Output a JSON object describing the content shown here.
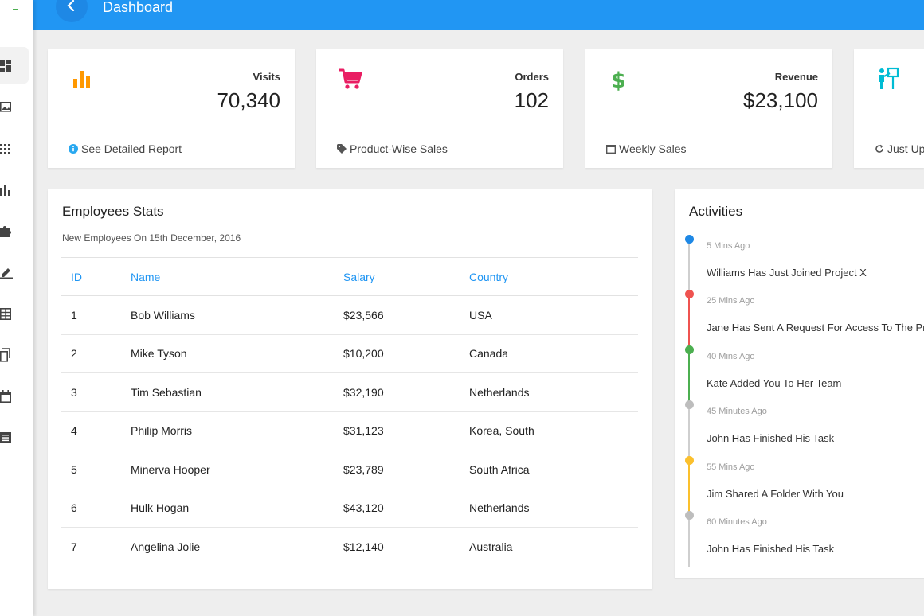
{
  "header": {
    "title": "Dashboard"
  },
  "sidebar": {
    "items": [
      {
        "icon": "dashboard-icon"
      },
      {
        "icon": "picture-icon"
      },
      {
        "icon": "apps-grid-icon"
      },
      {
        "icon": "bar-chart-icon"
      },
      {
        "icon": "puzzle-icon"
      },
      {
        "icon": "pencil-icon"
      },
      {
        "icon": "table-icon"
      },
      {
        "icon": "copy-icon"
      },
      {
        "icon": "calendar-icon"
      },
      {
        "icon": "list-icon"
      }
    ]
  },
  "stats": [
    {
      "label": "Visits",
      "value": "70,340",
      "footer": "See Detailed Report",
      "icon": "bar-chart-icon",
      "color": "#ff9800",
      "footer_icon": "info-icon"
    },
    {
      "label": "Orders",
      "value": "102",
      "footer": "Product-Wise Sales",
      "icon": "cart-icon",
      "color": "#e91e63",
      "footer_icon": "tag-icon"
    },
    {
      "label": "Revenue",
      "value": "$23,100",
      "footer": "Weekly Sales",
      "icon": "dollar-icon",
      "color": "#4caf50",
      "footer_icon": "calendar-icon"
    },
    {
      "label": "",
      "value": "",
      "footer": "Just Up",
      "icon": "person-board-icon",
      "color": "#00bcd4",
      "footer_icon": "refresh-icon"
    }
  ],
  "employees": {
    "title": "Employees Stats",
    "subtitle": "New Employees On 15th December, 2016",
    "columns": [
      "ID",
      "Name",
      "Salary",
      "Country"
    ],
    "rows": [
      [
        "1",
        "Bob Williams",
        "$23,566",
        "USA"
      ],
      [
        "2",
        "Mike Tyson",
        "$10,200",
        "Canada"
      ],
      [
        "3",
        "Tim Sebastian",
        "$32,190",
        "Netherlands"
      ],
      [
        "4",
        "Philip Morris",
        "$31,123",
        "Korea, South"
      ],
      [
        "5",
        "Minerva Hooper",
        "$23,789",
        "South Africa"
      ],
      [
        "6",
        "Hulk Hogan",
        "$43,120",
        "Netherlands"
      ],
      [
        "7",
        "Angelina Jolie",
        "$12,140",
        "Australia"
      ]
    ]
  },
  "activities": {
    "title": "Activities",
    "items": [
      {
        "time": "5 Mins Ago",
        "text": "Williams Has Just Joined Project X",
        "color": "#1e88e5"
      },
      {
        "time": "25 Mins Ago",
        "text": "Jane Has Sent A Request For Access To The Proj",
        "color": "#ef5350"
      },
      {
        "time": "40 Mins Ago",
        "text": "Kate Added You To Her Team",
        "color": "#4caf50"
      },
      {
        "time": "45 Minutes Ago",
        "text": "John Has Finished His Task",
        "color": "#bdbdbd"
      },
      {
        "time": "55 Mins Ago",
        "text": "Jim Shared A Folder With You",
        "color": "#fbc02d"
      },
      {
        "time": "60 Minutes Ago",
        "text": "John Has Finished His Task",
        "color": "#bdbdbd"
      }
    ]
  }
}
